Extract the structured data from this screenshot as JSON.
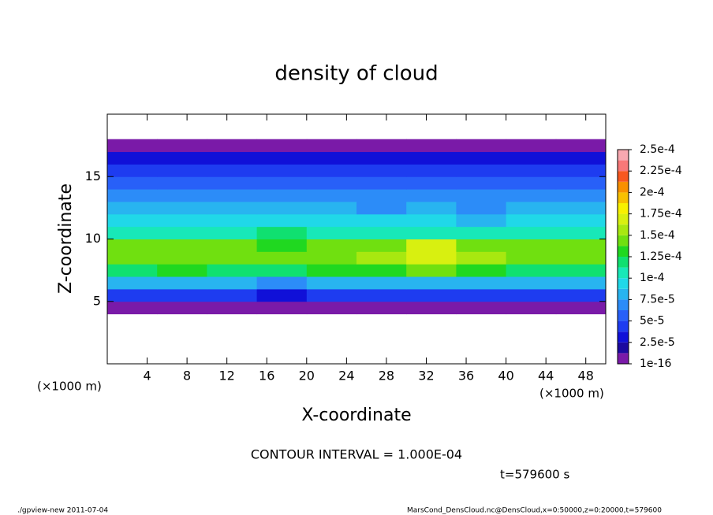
{
  "chart_data": {
    "type": "heatmap",
    "title": "density of cloud",
    "x_label": "X-coordinate",
    "y_label": "Z-coordinate",
    "x_unit_left": "(×1000 m)",
    "x_unit_right": "(×1000 m)",
    "annotation": "CONTOUR INTERVAL = 1.000E-04",
    "time_label": "t=579600 s",
    "footer_left": "./gpview-new  2011-07-04",
    "footer_right": "MarsCond_DensCloud.nc@DensCloud,x=0:50000,z=0:20000,t=579600",
    "xlim": [
      0,
      50
    ],
    "ylim": [
      0,
      20
    ],
    "xticks": [
      4,
      8,
      12,
      16,
      20,
      24,
      28,
      32,
      36,
      40,
      44,
      48
    ],
    "yticks": [
      5,
      10,
      15
    ],
    "x": [
      2.5,
      7.5,
      12.5,
      17.5,
      22.5,
      27.5,
      32.5,
      37.5,
      42.5,
      47.5
    ],
    "y": [
      0.5,
      1.5,
      2.5,
      3.5,
      4.5,
      5.5,
      6.5,
      7.5,
      8.5,
      9.5,
      10.5,
      11.5,
      12.5,
      13.5,
      14.5,
      15.5,
      16.5,
      17.5,
      18.5,
      19.5
    ],
    "values": [
      [
        null,
        null,
        null,
        null,
        null,
        null,
        null,
        null,
        null,
        null
      ],
      [
        null,
        null,
        null,
        null,
        null,
        null,
        null,
        null,
        null,
        null
      ],
      [
        null,
        null,
        null,
        null,
        null,
        null,
        null,
        null,
        null,
        null
      ],
      [
        null,
        null,
        null,
        null,
        null,
        null,
        null,
        null,
        null,
        null
      ],
      [
        1e-05,
        1e-05,
        1e-05,
        1e-05,
        1e-05,
        1e-05,
        1e-05,
        1e-05,
        1e-05,
        1e-05
      ],
      [
        4e-05,
        4.5e-05,
        4e-05,
        3.5e-05,
        4e-05,
        4.5e-05,
        4e-05,
        4e-05,
        4.5e-05,
        4e-05
      ],
      [
        8e-05,
        8.5e-05,
        8e-05,
        7.5e-05,
        8e-05,
        8.5e-05,
        8e-05,
        8e-05,
        8.5e-05,
        8e-05
      ],
      [
        0.000125,
        0.00013,
        0.00012,
        0.00012,
        0.00013,
        0.000135,
        0.00014,
        0.00013,
        0.000125,
        0.00012
      ],
      [
        0.000145,
        0.00015,
        0.000145,
        0.00014,
        0.00015,
        0.00016,
        0.00017,
        0.000155,
        0.00015,
        0.000145
      ],
      [
        0.00014,
        0.000145,
        0.00014,
        0.000135,
        0.000145,
        0.00015,
        0.000175,
        0.00015,
        0.000145,
        0.00014
      ],
      [
        0.000105,
        0.00011,
        0.00011,
        0.000115,
        0.00011,
        0.000105,
        0.00011,
        0.000105,
        0.000105,
        0.00011
      ],
      [
        9e-05,
        9e-05,
        9.5e-05,
        0.0001,
        9.5e-05,
        9e-05,
        9e-05,
        8.5e-05,
        9e-05,
        9e-05
      ],
      [
        8e-05,
        8e-05,
        8e-05,
        8.5e-05,
        8e-05,
        7.5e-05,
        8e-05,
        7.5e-05,
        8e-05,
        8e-05
      ],
      [
        7e-05,
        7e-05,
        6.5e-05,
        6.5e-05,
        7e-05,
        7e-05,
        7e-05,
        6.5e-05,
        7e-05,
        7e-05
      ],
      [
        6e-05,
        6e-05,
        5.5e-05,
        5.5e-05,
        6e-05,
        6e-05,
        6e-05,
        5.5e-05,
        6e-05,
        6e-05
      ],
      [
        5e-05,
        5e-05,
        4.5e-05,
        4.5e-05,
        5e-05,
        5e-05,
        5e-05,
        5e-05,
        5e-05,
        5e-05
      ],
      [
        3e-05,
        3e-05,
        3e-05,
        3e-05,
        3e-05,
        3e-05,
        3e-05,
        3e-05,
        3e-05,
        3e-05
      ],
      [
        1e-05,
        1e-05,
        1e-05,
        1e-05,
        1e-05,
        1e-05,
        1e-05,
        1e-05,
        1e-05,
        1e-05
      ],
      [
        null,
        null,
        null,
        null,
        null,
        null,
        null,
        null,
        null,
        null
      ],
      [
        null,
        null,
        null,
        null,
        null,
        null,
        null,
        null,
        null,
        null
      ]
    ],
    "clim": [
      1e-16,
      0.00025
    ],
    "cticks": [
      1e-16,
      {
        "value": 2.5e-05,
        "label": "2.5e-5"
      },
      {
        "value": 5e-05,
        "label": "5e-5"
      },
      {
        "value": 7.5e-05,
        "label": "7.5e-5"
      },
      {
        "value": 0.0001,
        "label": "1e-4"
      },
      {
        "value": 0.000125,
        "label": "1.25e-4"
      },
      {
        "value": 0.00015,
        "label": "1.5e-4"
      },
      {
        "value": 0.000175,
        "label": "1.75e-4"
      },
      {
        "value": 0.0002,
        "label": "2e-4"
      },
      {
        "value": 0.000225,
        "label": "2.25e-4"
      },
      {
        "value": 0.00025,
        "label": "2.5e-4"
      }
    ],
    "colors": [
      "#7a1aa8",
      "#1c0aa0",
      "#1010d8",
      "#1e3cf0",
      "#2860f8",
      "#2c8cf8",
      "#28b4f0",
      "#20d8e8",
      "#18e8b8",
      "#10e070",
      "#20d820",
      "#70e010",
      "#a8e810",
      "#d8f010",
      "#f8f000",
      "#f8c000",
      "#f89000",
      "#f85820",
      "#f87878",
      "#f8a8b0"
    ]
  }
}
